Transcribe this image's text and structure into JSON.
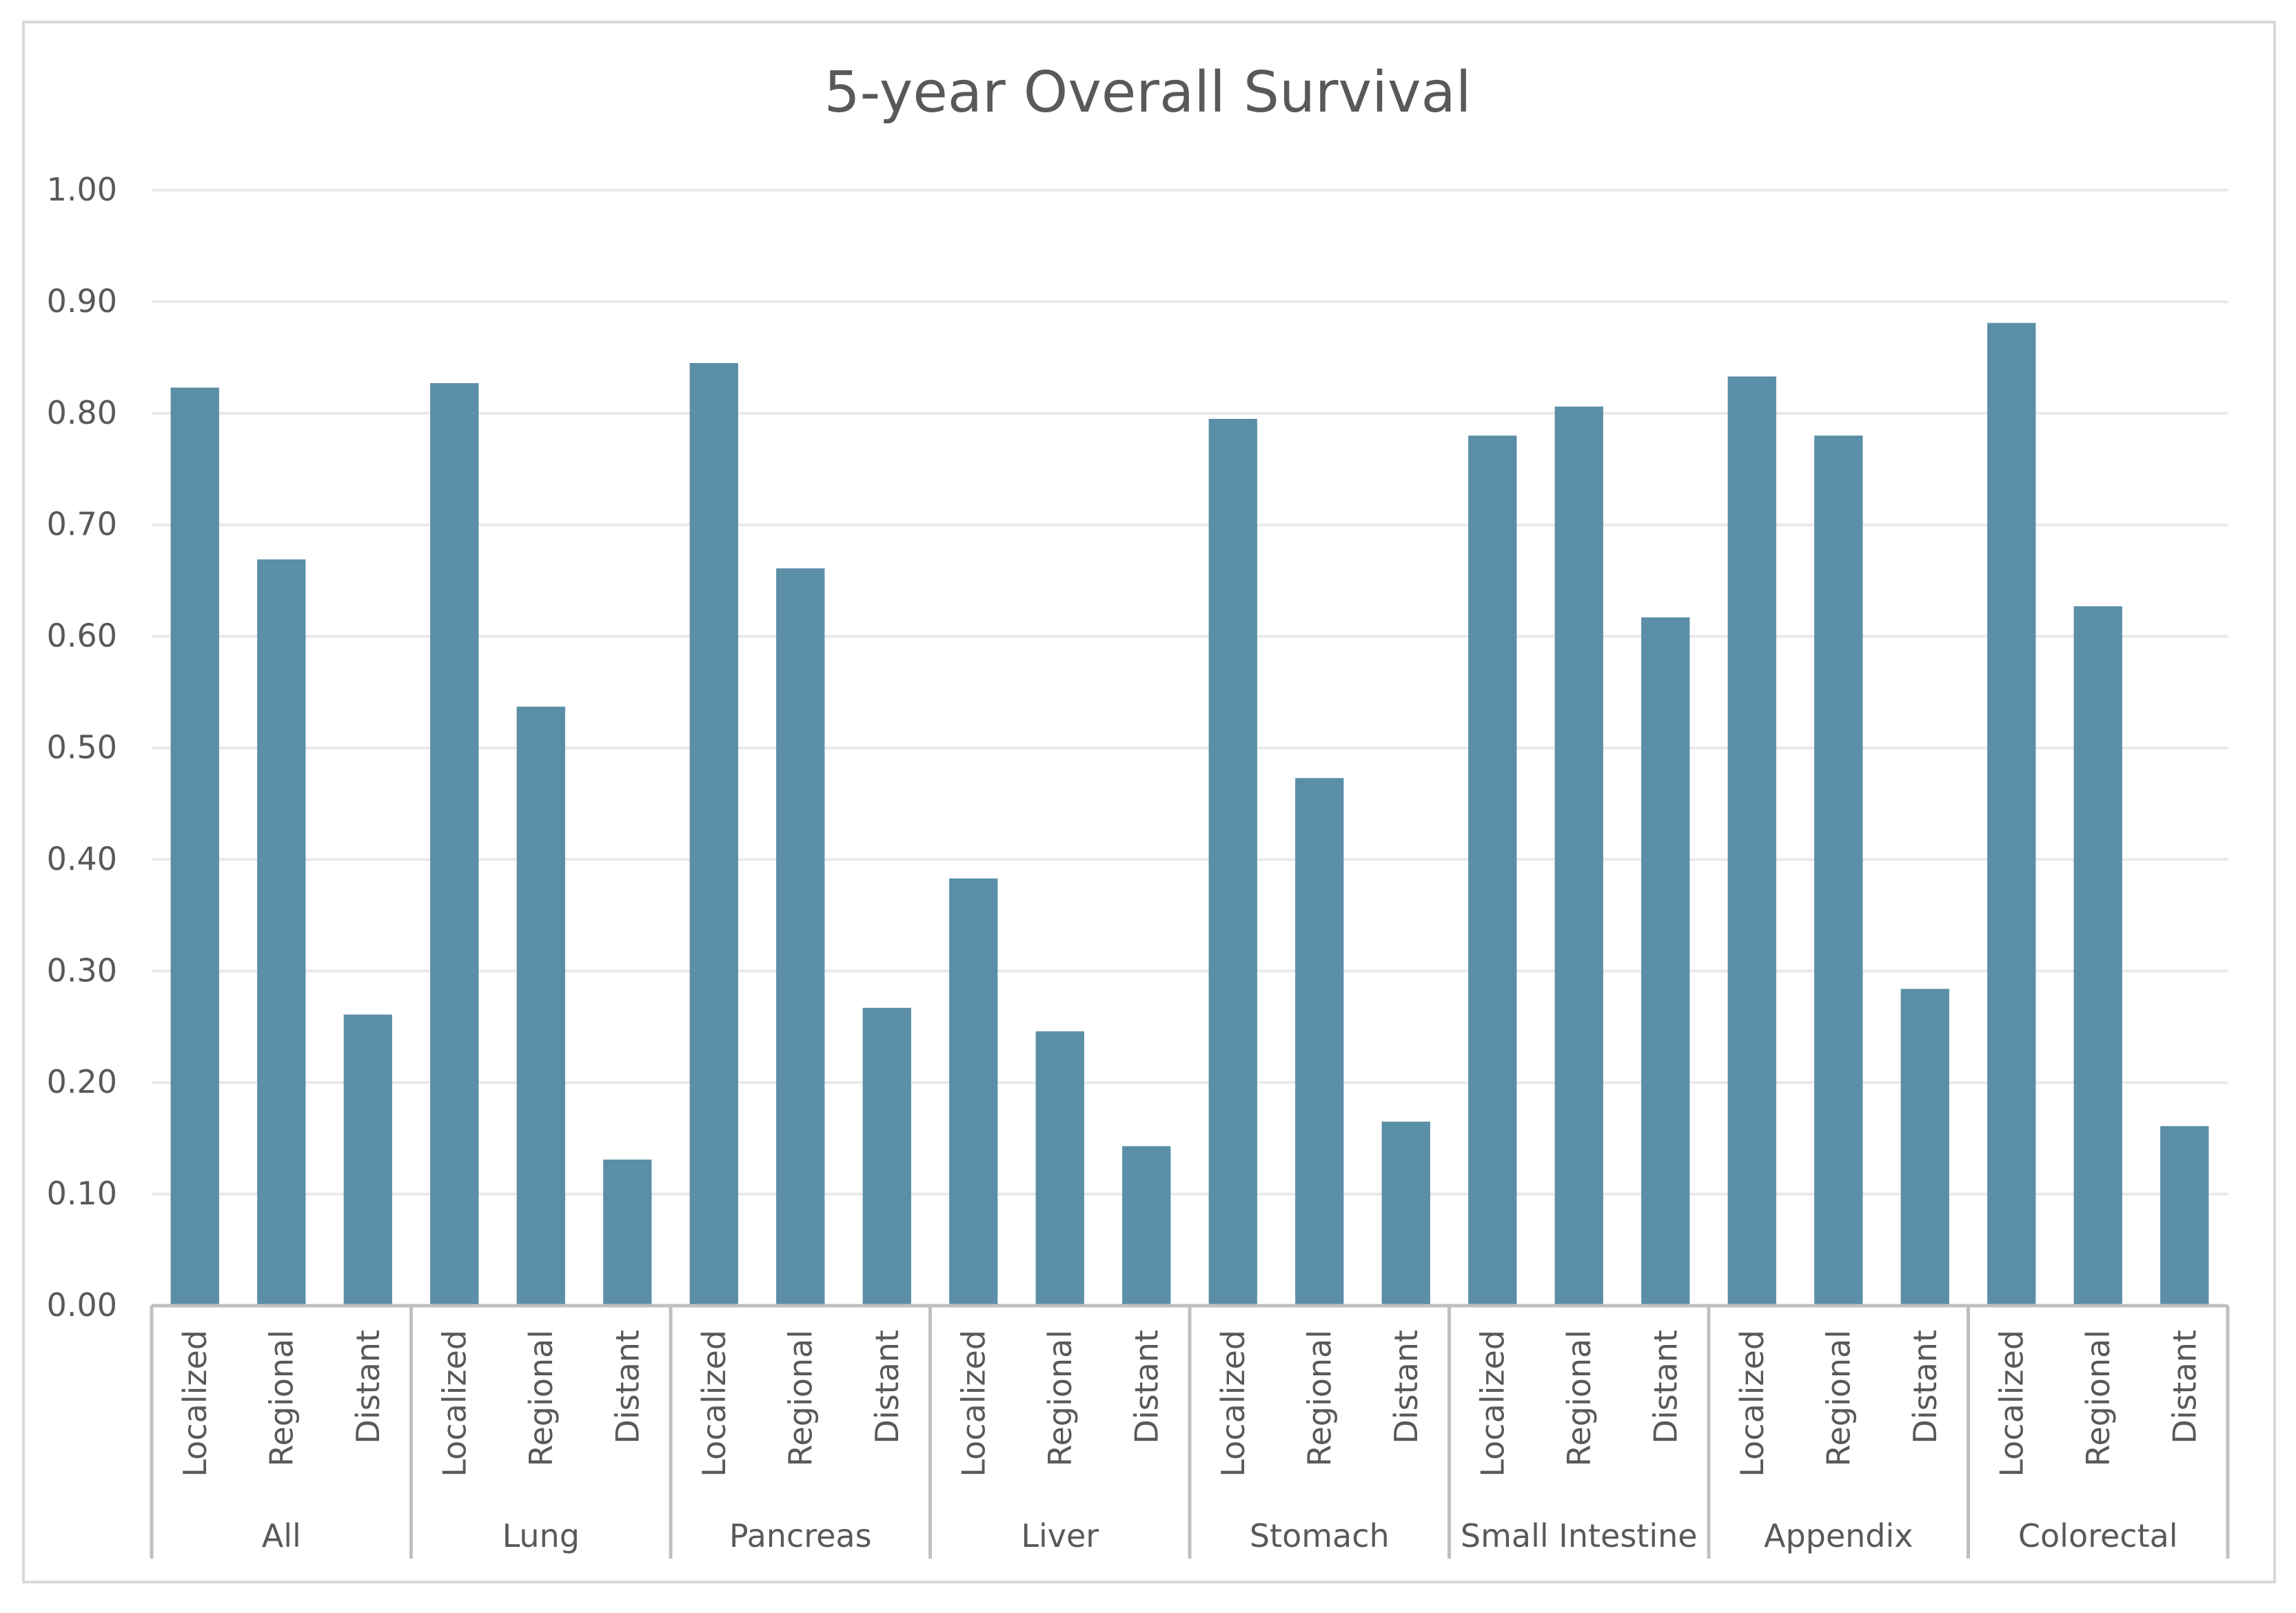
{
  "chart_data": {
    "type": "bar",
    "title": "5-year Overall Survival",
    "xlabel": "",
    "ylabel": "",
    "ylim": [
      0,
      1
    ],
    "y_ticks": [
      "0.00",
      "0.10",
      "0.20",
      "0.30",
      "0.40",
      "0.50",
      "0.60",
      "0.70",
      "0.80",
      "0.90",
      "1.00"
    ],
    "y_tick_values": [
      0,
      0.1,
      0.2,
      0.3,
      0.4,
      0.5,
      0.6,
      0.7,
      0.8,
      0.9,
      1.0
    ],
    "grid": true,
    "legend": "none",
    "bar_color": "#5b8ea7",
    "groups": [
      {
        "name": "All",
        "stages": [
          "Localized",
          "Regional",
          "Distant"
        ],
        "values": [
          0.823,
          0.669,
          0.261
        ]
      },
      {
        "name": "Lung",
        "stages": [
          "Localized",
          "Regional",
          "Distant"
        ],
        "values": [
          0.827,
          0.537,
          0.131
        ]
      },
      {
        "name": "Pancreas",
        "stages": [
          "Localized",
          "Regional",
          "Distant"
        ],
        "values": [
          0.845,
          0.661,
          0.267
        ]
      },
      {
        "name": "Liver",
        "stages": [
          "Localized",
          "Regional",
          "Distant"
        ],
        "values": [
          0.383,
          0.246,
          0.143
        ]
      },
      {
        "name": "Stomach",
        "stages": [
          "Localized",
          "Regional",
          "Distant"
        ],
        "values": [
          0.795,
          0.473,
          0.165
        ]
      },
      {
        "name": "Small Intestine",
        "stages": [
          "Localized",
          "Regional",
          "Distant"
        ],
        "values": [
          0.78,
          0.806,
          0.617
        ]
      },
      {
        "name": "Appendix",
        "stages": [
          "Localized",
          "Regional",
          "Distant"
        ],
        "values": [
          0.833,
          0.78,
          0.284
        ]
      },
      {
        "name": "Colorectal",
        "stages": [
          "Localized",
          "Regional",
          "Distant"
        ],
        "values": [
          0.881,
          0.627,
          0.161
        ]
      }
    ]
  }
}
